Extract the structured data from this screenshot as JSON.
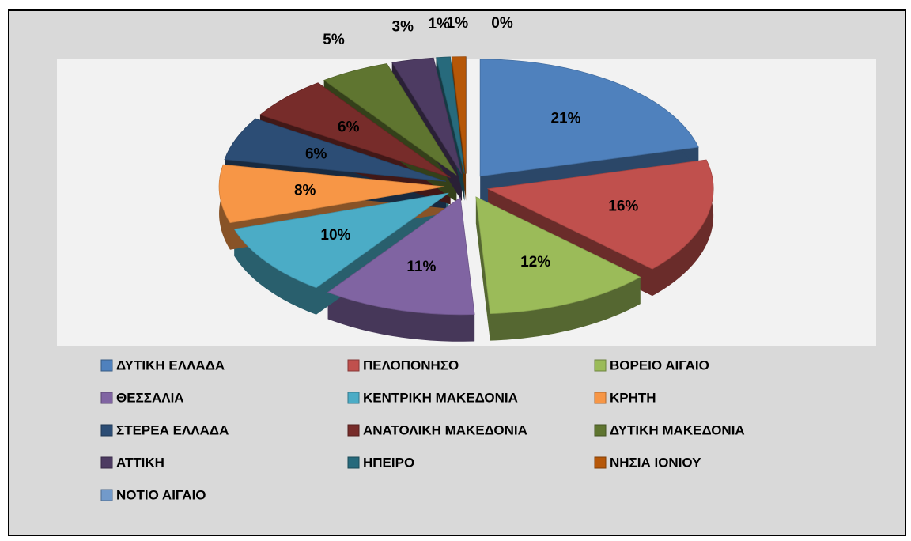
{
  "chart_data": {
    "type": "pie",
    "categories": [
      "ΔΥΤΙΚΗ ΕΛΛΑΔΑ",
      "ΠΕΛΟΠΟΝΗΣΟ",
      "ΒΟΡΕΙΟ ΑΙΓΑΙΟ",
      "ΘΕΣΣΑΛΙΑ",
      "ΚΕΝΤΡΙΚΗ ΜΑΚΕΔΟΝΙΑ",
      "ΚΡΗΤΗ",
      "ΣΤΕΡΕΑ ΕΛΛΑΔΑ",
      "ΑΝΑΤΟΛΙΚΗ ΜΑΚΕΔΟΝΙΑ",
      "ΔΥΤΙΚΗ ΜΑΚΕΔΟΝΙΑ",
      "ΑΤΤΙΚΗ",
      "ΗΠΕΙΡΟ",
      "ΝΗΣΙΑ ΙΟΝΙΟΥ",
      "ΝΟΤΙΟ ΑΙΓΑΙΟ"
    ],
    "values": [
      21,
      16,
      12,
      11,
      10,
      8,
      6,
      6,
      5,
      3,
      1,
      1,
      0
    ],
    "value_labels": [
      "21%",
      "16%",
      "12%",
      "11%",
      "10%",
      "8%",
      "6%",
      "6%",
      "5%",
      "3%",
      "1%",
      "1%",
      "0%"
    ],
    "colors": [
      "#4f81bd",
      "#c0504d",
      "#9bbb59",
      "#8064a2",
      "#4bacc6",
      "#f79646",
      "#2c4d75",
      "#772c2a",
      "#5f7530",
      "#4d3b62",
      "#276a7c",
      "#b65708",
      "#729aca"
    ],
    "legend": "bottom"
  }
}
